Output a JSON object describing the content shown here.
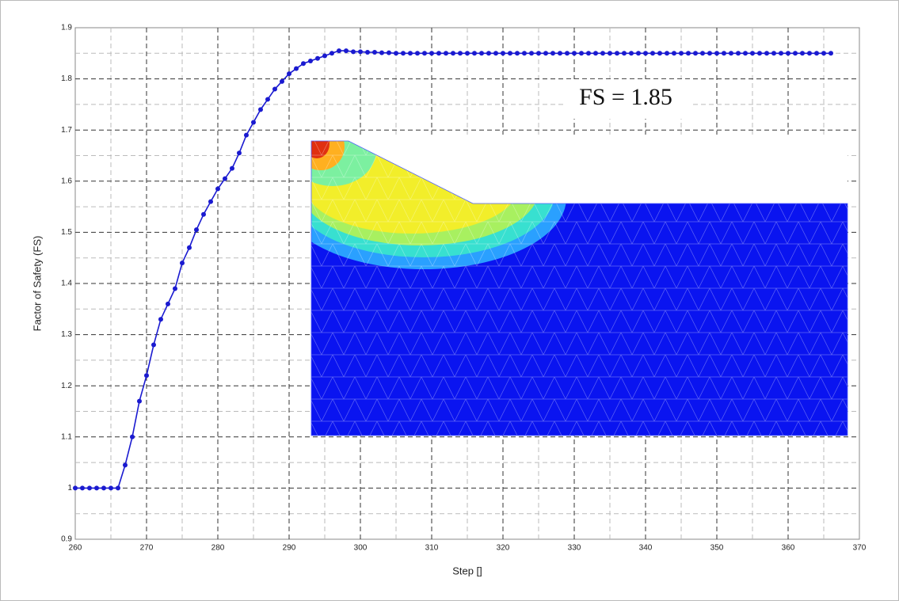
{
  "chart_data": {
    "type": "line",
    "x_label": "Step []",
    "y_label": "Factor of Safety (FS)",
    "annotation": "FS = 1.85",
    "x": [
      260,
      261,
      262,
      263,
      264,
      265,
      266,
      267,
      268,
      269,
      270,
      271,
      272,
      273,
      274,
      275,
      276,
      277,
      278,
      279,
      280,
      281,
      282,
      283,
      284,
      285,
      286,
      287,
      288,
      289,
      290,
      291,
      292,
      293,
      294,
      295,
      296,
      297,
      298,
      299,
      300,
      301,
      302,
      303,
      304,
      305,
      306,
      307,
      308,
      309,
      310,
      311,
      312,
      313,
      314,
      315,
      316,
      317,
      318,
      319,
      320,
      321,
      322,
      323,
      324,
      325,
      326,
      327,
      328,
      329,
      330,
      331,
      332,
      333,
      334,
      335,
      336,
      337,
      338,
      339,
      340,
      341,
      342,
      343,
      344,
      345,
      346,
      347,
      348,
      349,
      350,
      351,
      352,
      353,
      354,
      355,
      356,
      357,
      358,
      359,
      360,
      361,
      362,
      363,
      364,
      365,
      366
    ],
    "series": [
      {
        "color": "#1a1ad0",
        "values": [
          1,
          1,
          1,
          1,
          1,
          1,
          1,
          1.045,
          1.1,
          1.17,
          1.22,
          1.28,
          1.33,
          1.36,
          1.39,
          1.44,
          1.47,
          1.505,
          1.535,
          1.56,
          1.585,
          1.605,
          1.625,
          1.655,
          1.69,
          1.715,
          1.74,
          1.76,
          1.78,
          1.795,
          1.81,
          1.82,
          1.83,
          1.835,
          1.84,
          1.845,
          1.85,
          1.855,
          1.855,
          1.853,
          1.853,
          1.852,
          1.852,
          1.851,
          1.851,
          1.85,
          1.85,
          1.85,
          1.85,
          1.85,
          1.85,
          1.85,
          1.85,
          1.85,
          1.85,
          1.85,
          1.85,
          1.85,
          1.85,
          1.85,
          1.85,
          1.85,
          1.85,
          1.85,
          1.85,
          1.85,
          1.85,
          1.85,
          1.85,
          1.85,
          1.85,
          1.85,
          1.85,
          1.85,
          1.85,
          1.85,
          1.85,
          1.85,
          1.85,
          1.85,
          1.85,
          1.85,
          1.85,
          1.85,
          1.85,
          1.85,
          1.85,
          1.85,
          1.85,
          1.85,
          1.85,
          1.85,
          1.85,
          1.85,
          1.85,
          1.85,
          1.85,
          1.85,
          1.85,
          1.85,
          1.85,
          1.85,
          1.85,
          1.85,
          1.85,
          1.85,
          1.85
        ]
      }
    ],
    "xlim": [
      260,
      370
    ],
    "xticks": [
      260,
      270,
      280,
      290,
      300,
      310,
      320,
      330,
      340,
      350,
      360,
      370
    ],
    "ylim": [
      0.9,
      1.9
    ],
    "yticks": [
      0.9,
      1,
      1.1,
      1.2,
      1.3,
      1.4,
      1.5,
      1.6,
      1.7,
      1.8,
      1.9
    ],
    "grid": true,
    "minor_grid": true
  }
}
